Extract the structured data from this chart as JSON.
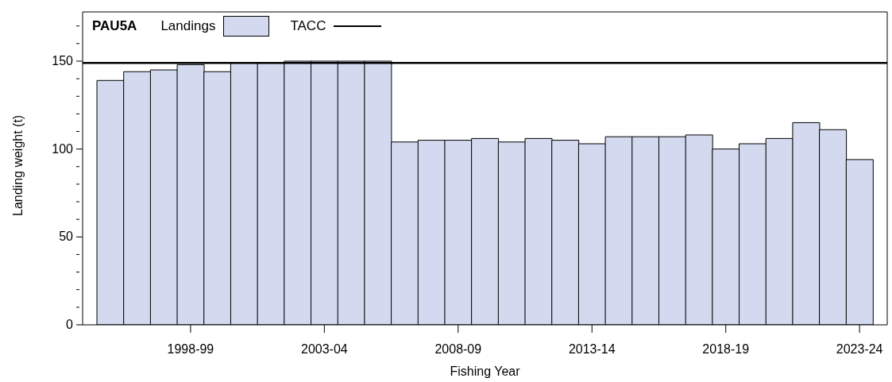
{
  "chart_data": {
    "type": "bar",
    "title": "PAU5A",
    "xlabel": "Fishing Year",
    "ylabel": "Landing weight (t)",
    "categories": [
      null,
      null,
      null,
      "1998-99",
      null,
      null,
      null,
      null,
      "2003-04",
      null,
      null,
      null,
      null,
      "2008-09",
      null,
      null,
      null,
      null,
      "2013-14",
      null,
      null,
      null,
      null,
      "2018-19",
      null,
      null,
      null,
      null,
      "2023-24"
    ],
    "series": [
      {
        "name": "Landings",
        "color": "#d3daf0",
        "values": [
          139,
          144,
          145,
          148,
          144,
          149,
          149,
          150,
          150,
          150,
          150,
          104,
          105,
          105,
          106,
          104,
          106,
          105,
          103,
          107,
          107,
          107,
          108,
          100,
          103,
          106,
          115,
          111,
          94
        ]
      }
    ],
    "ref_lines": [
      {
        "axis": "y",
        "value": 149,
        "label": "TACC",
        "color": "#000000"
      }
    ],
    "ylim": [
      0,
      178
    ],
    "yticks": [
      0,
      {
        "value": 10,
        "label": null
      },
      {
        "value": 20,
        "label": null
      },
      {
        "value": 30,
        "label": null
      },
      {
        "value": 40,
        "label": null
      },
      50,
      {
        "value": 60,
        "label": null
      },
      {
        "value": 70,
        "label": null
      },
      {
        "value": 80,
        "label": null
      },
      {
        "value": 90,
        "label": null
      },
      100,
      {
        "value": 110,
        "label": null
      },
      {
        "value": 120,
        "label": null
      },
      {
        "value": 130,
        "label": null
      },
      {
        "value": 140,
        "label": null
      },
      150,
      {
        "value": 160,
        "label": null
      },
      {
        "value": 170,
        "label": null
      }
    ],
    "legend": "top left",
    "grid": false
  }
}
